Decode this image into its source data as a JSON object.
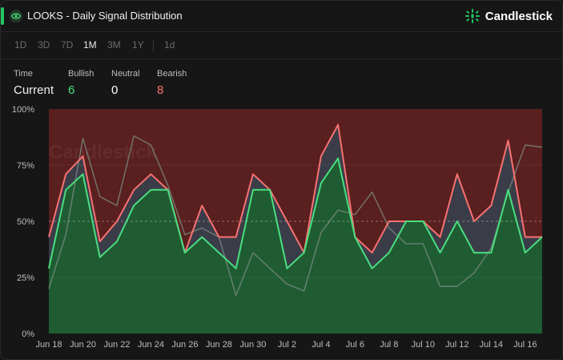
{
  "header": {
    "title": "LOOKS - Daily Signal Distribution",
    "brand": "Candlestick",
    "brand_color": "#22c55e",
    "title_icon": "eye-icon"
  },
  "tabs": [
    "1D",
    "3D",
    "7D",
    "1M",
    "3M",
    "1Y",
    "1d"
  ],
  "active_tab": "1M",
  "stats": {
    "time_label": "Time",
    "time_value": "Current",
    "bullish_label": "Bullish",
    "bullish_value": "6",
    "neutral_label": "Neutral",
    "neutral_value": "0",
    "bearish_label": "Bearish",
    "bearish_value": "8"
  },
  "watermark": "Candlestick",
  "colors": {
    "bullish": "#4ade80",
    "bearish": "#f87171",
    "bullish_fill": "#1f5c32",
    "bearish_fill": "#5a1f1f",
    "gap_fill": "#3a3d48",
    "neutral_line": "#7a8a7e"
  },
  "chart_data": {
    "type": "area",
    "x": [
      "Jun 18",
      "Jun 19",
      "Jun 20",
      "Jun 21",
      "Jun 22",
      "Jun 23",
      "Jun 24",
      "Jun 25",
      "Jun 26",
      "Jun 27",
      "Jun 28",
      "Jun 29",
      "Jun 30",
      "Jul 1",
      "Jul 2",
      "Jul 3",
      "Jul 4",
      "Jul 5",
      "Jul 6",
      "Jul 7",
      "Jul 8",
      "Jul 9",
      "Jul 10",
      "Jul 11",
      "Jul 12",
      "Jul 13",
      "Jul 14",
      "Jul 15",
      "Jul 16",
      "Jul 17"
    ],
    "x_tick_labels": [
      "Jun 18",
      "Jun 20",
      "Jun 22",
      "Jun 24",
      "Jun 26",
      "Jun 28",
      "Jun 30",
      "Jul 2",
      "Jul 4",
      "Jul 6",
      "Jul 8",
      "Jul 10",
      "Jul 12",
      "Jul 14",
      "Jul 16"
    ],
    "y_tick_labels": [
      "0%",
      "25%",
      "50%",
      "75%",
      "100%"
    ],
    "ylim": [
      0,
      100
    ],
    "reference_line": 50,
    "series": [
      {
        "values": [
          29,
          64,
          71,
          34,
          41,
          57,
          64,
          64,
          36,
          43,
          36,
          29,
          64,
          64,
          29,
          36,
          67,
          78,
          43,
          29,
          36,
          50,
          50,
          36,
          50,
          36,
          36,
          64,
          36,
          43
        ]
      },
      {
        "values": [
          43,
          71,
          79,
          41,
          50,
          64,
          71,
          64,
          36,
          57,
          43,
          43,
          71,
          64,
          50,
          36,
          79,
          93,
          43,
          36,
          50,
          50,
          50,
          43,
          71,
          50,
          57,
          86,
          43,
          43
        ]
      },
      {
        "values": [
          20,
          44,
          87,
          61,
          57,
          88,
          84,
          66,
          44,
          47,
          43,
          17,
          36,
          29,
          22,
          19,
          45,
          55,
          53,
          63,
          47,
          40,
          40,
          21,
          21,
          27,
          38,
          63,
          84,
          83
        ]
      }
    ]
  }
}
